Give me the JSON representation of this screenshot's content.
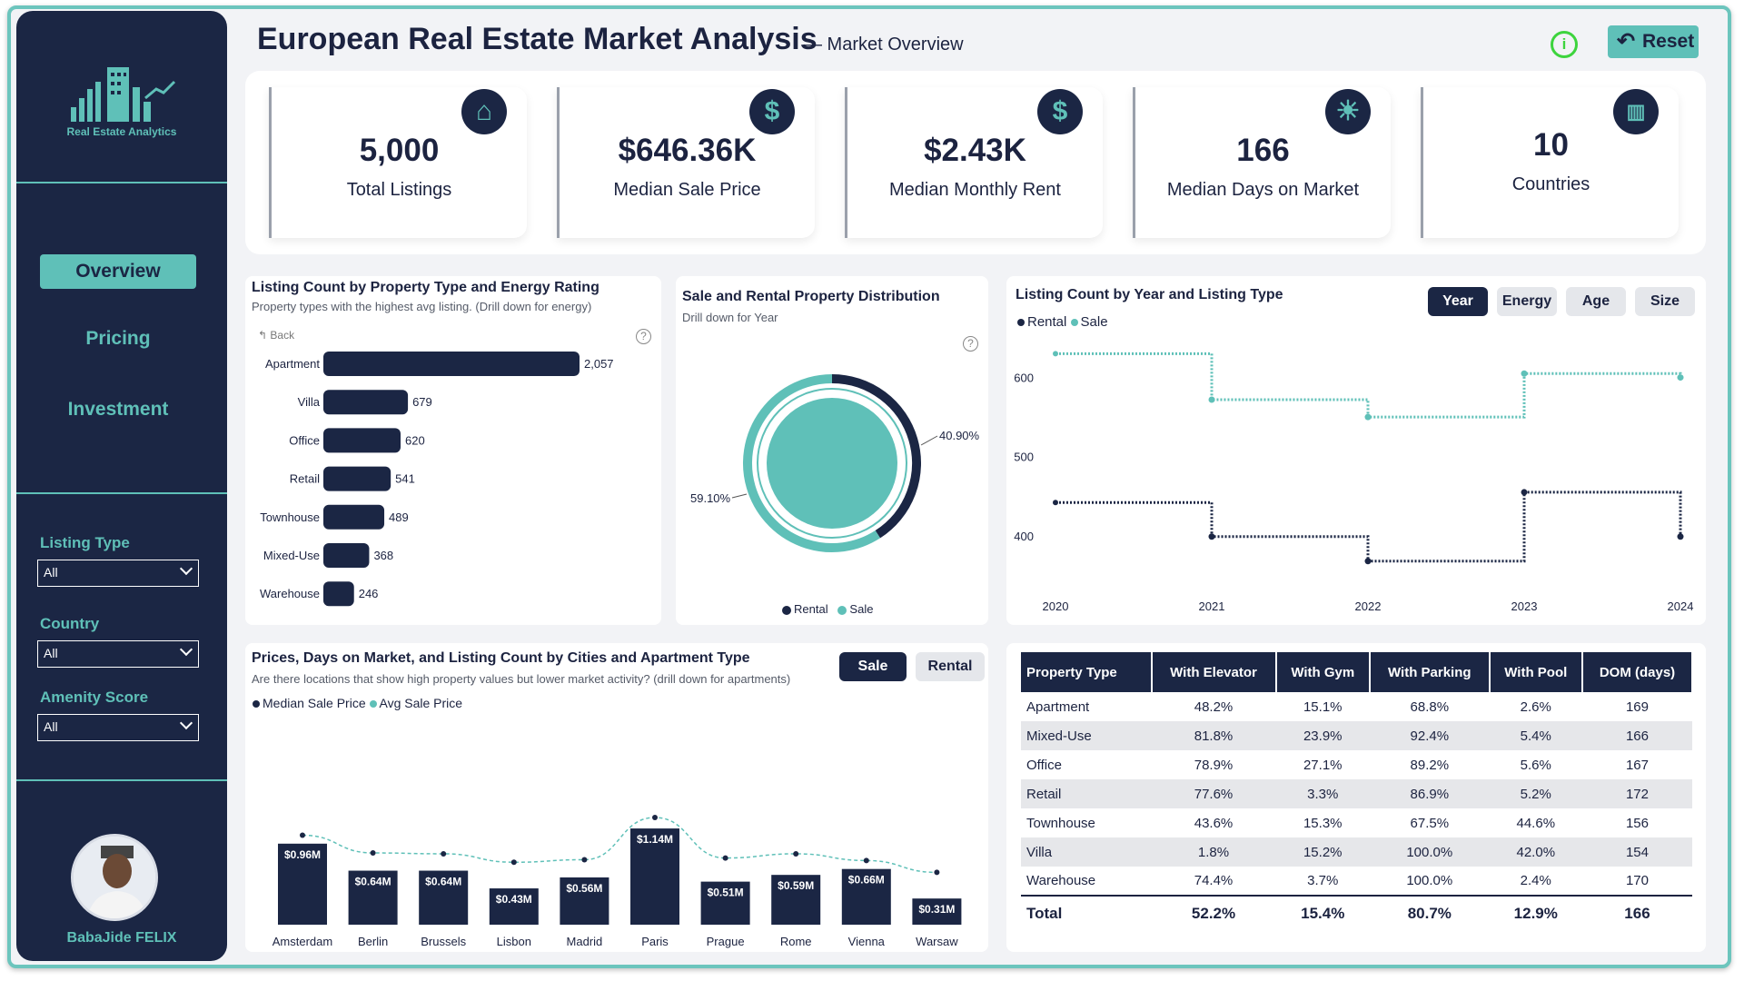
{
  "header": {
    "title": "European Real Estate Market Analysis",
    "subtitle": "— Market Overview",
    "reset_label": "Reset"
  },
  "sidebar": {
    "logo_text": "Real Estate Analytics",
    "nav": [
      "Overview",
      "Pricing",
      "Investment"
    ],
    "filters": [
      {
        "label": "Listing Type",
        "value": "All"
      },
      {
        "label": "Country",
        "value": "All"
      },
      {
        "label": "Amenity Score",
        "value": "All"
      }
    ],
    "user_name": "BabaJide FELIX"
  },
  "kpis": [
    {
      "value": "5,000",
      "label": "Total Listings",
      "icon": "home-icon"
    },
    {
      "value": "$646.36K",
      "label": "Median Sale Price",
      "icon": "dollar-icon"
    },
    {
      "value": "$2.43K",
      "label": "Median Monthly Rent",
      "icon": "dollar-icon"
    },
    {
      "value": "166",
      "label": "Median Days on Market",
      "icon": "sun-icon"
    },
    {
      "value": "10",
      "label": "Countries",
      "icon": "buildings-icon"
    }
  ],
  "property_bar": {
    "title": "Listing Count by Property Type and Energy Rating",
    "subtitle": "Property types with the highest avg listing. (Drill down for energy)",
    "back_label": "Back"
  },
  "donut": {
    "title": "Sale and Rental Property Distribution",
    "subtitle": "Drill down for Year",
    "legend": [
      "Rental",
      "Sale"
    ]
  },
  "year_line": {
    "title": "Listing Count by Year and Listing Type",
    "legend": [
      "Rental",
      "Sale"
    ],
    "toggles": [
      "Year",
      "Energy",
      "Age",
      "Size"
    ]
  },
  "cities": {
    "title": "Prices, Days on Market, and Listing Count by Cities and Apartment Type",
    "subtitle": "Are there locations that show high property values but lower market activity? (drill down for apartments)",
    "legend": [
      "Median Sale Price",
      "Avg Sale Price"
    ],
    "toggles": [
      "Sale",
      "Rental"
    ]
  },
  "table": {
    "headers": [
      "Property Type",
      "With Elevator",
      "With Gym",
      "With Parking",
      "With Pool",
      "DOM (days)"
    ],
    "rows": [
      [
        "Apartment",
        "48.2%",
        "15.1%",
        "68.8%",
        "2.6%",
        "169"
      ],
      [
        "Mixed-Use",
        "81.8%",
        "23.9%",
        "92.4%",
        "5.4%",
        "166"
      ],
      [
        "Office",
        "78.9%",
        "27.1%",
        "89.2%",
        "5.6%",
        "167"
      ],
      [
        "Retail",
        "77.6%",
        "3.3%",
        "86.9%",
        "5.2%",
        "172"
      ],
      [
        "Townhouse",
        "43.6%",
        "15.3%",
        "67.5%",
        "44.6%",
        "156"
      ],
      [
        "Villa",
        "1.8%",
        "15.2%",
        "100.0%",
        "42.0%",
        "154"
      ],
      [
        "Warehouse",
        "74.4%",
        "3.7%",
        "100.0%",
        "2.4%",
        "170"
      ]
    ],
    "total": [
      "Total",
      "52.2%",
      "15.4%",
      "80.7%",
      "12.9%",
      "166"
    ],
    "colors": [
      [
        "",
        "",
        "r",
        "g",
        "r",
        ""
      ],
      [
        "",
        "g",
        "r",
        "g",
        "r",
        ""
      ],
      [
        "",
        "g",
        "r",
        "g",
        "r",
        ""
      ],
      [
        "",
        "g",
        "r",
        "g",
        "r",
        ""
      ],
      [
        "",
        "",
        "r",
        "g",
        "",
        ""
      ],
      [
        "",
        "r",
        "r",
        "g",
        "",
        ""
      ],
      [
        "",
        "g",
        "r",
        "g",
        "r",
        ""
      ]
    ],
    "total_colors": [
      "",
      "",
      "r",
      "g",
      "r",
      ""
    ]
  },
  "colors": {
    "navy": "#1b2644",
    "teal": "#5fc0b8",
    "green": "#25c025",
    "red": "#e8243c"
  },
  "chart_data": [
    {
      "type": "bar",
      "orientation": "horizontal",
      "categories": [
        "Apartment",
        "Villa",
        "Office",
        "Retail",
        "Townhouse",
        "Mixed-Use",
        "Warehouse"
      ],
      "values": [
        2057,
        679,
        620,
        541,
        489,
        368,
        246
      ],
      "data_labels": [
        "2,057",
        "679",
        "620",
        "541",
        "489",
        "368",
        "246"
      ]
    },
    {
      "type": "pie",
      "donut": true,
      "categories": [
        "Rental",
        "Sale"
      ],
      "values": [
        40.9,
        59.1
      ],
      "data_labels": [
        "40.90%",
        "59.10%"
      ],
      "colors": [
        "#1b2644",
        "#5fc0b8"
      ]
    },
    {
      "type": "line",
      "step": true,
      "x": [
        "2020",
        "2021",
        "2022",
        "2023",
        "2024"
      ],
      "y_ticks": [
        "400",
        "500",
        "600"
      ],
      "ylim": [
        370,
        650
      ],
      "series": [
        {
          "name": "Rental",
          "values": [
            442,
            399,
            368,
            455,
            399
          ],
          "color": "#1b2644"
        },
        {
          "name": "Sale",
          "values": [
            630,
            572,
            550,
            605,
            600
          ],
          "color": "#5fc0b8"
        }
      ]
    },
    {
      "type": "bar",
      "categories": [
        "Amsterdam",
        "Berlin",
        "Brussels",
        "Lisbon",
        "Madrid",
        "Paris",
        "Prague",
        "Rome",
        "Vienna",
        "Warsaw"
      ],
      "series": [
        {
          "name": "Median Sale Price",
          "values": [
            0.96,
            0.64,
            0.64,
            0.43,
            0.56,
            1.14,
            0.51,
            0.59,
            0.66,
            0.31
          ],
          "data_labels": [
            "$0.96M",
            "$0.64M",
            "$0.64M",
            "$0.43M",
            "$0.56M",
            "$1.14M",
            "$0.51M",
            "$0.59M",
            "$0.66M",
            "$0.31M"
          ]
        },
        {
          "name": "Avg Sale Price",
          "type": "line",
          "values": [
            1.06,
            0.85,
            0.84,
            0.74,
            0.77,
            1.27,
            0.79,
            0.84,
            0.76,
            0.62
          ]
        }
      ]
    }
  ]
}
